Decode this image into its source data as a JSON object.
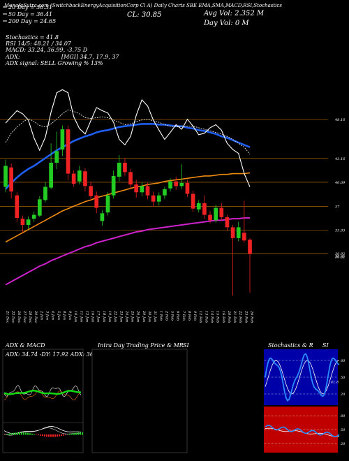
{
  "header": {
    "top_line": "MunafaSutra.com (SwitchbackEnergyAcquisitionCorp Cl A) Daily Charts SBE EMA,SMA,MACD,RSI,Stochastics",
    "close_label": "CL: 30.85",
    "avg_vol_label": "Avg Vol: 2.352 M",
    "day_vol_label": "Day Vol: 0 M",
    "legend": [
      {
        "label": "20 Day = 36.31",
        "color": "#ffffff"
      },
      {
        "label": "50 Day = 36.41",
        "color": "#ffffff"
      },
      {
        "label": "200 Day = 24.65",
        "color": "#ffffff"
      }
    ],
    "stoch_label": "Stochastics = 41.8",
    "rsi_label": "RSI 14/5: 48.21 / 34.07",
    "macd_label": "MACD: 33.24, 36.99, -3.75 D",
    "adx_label": "ADX:",
    "adx_values": "[MGI] 34.7, 17.9, 37",
    "adx_signal": "ADX signal: SELL Growing % 13%"
  },
  "chart_data": {
    "type": "candlestick",
    "price_ticks": [
      "48.16",
      "43.16",
      "40.09",
      "37",
      "33.93",
      "30.92",
      "30.52",
      "30.61"
    ],
    "x_labels": [
      "21 Dec",
      "22 Dec",
      "26 Dec",
      "27 Dec",
      "28 Dec",
      "29 Dec",
      "2 Jan",
      "3 Jan",
      "4 Jan",
      "5 Jan",
      "8 Jan",
      "9 Jan",
      "10 Jan",
      "11 Jan",
      "12 Jan",
      "16 Jan",
      "17 Jan",
      "18 Jan",
      "19 Jan",
      "22 Jan",
      "23 Jan",
      "24 Jan",
      "25 Jan",
      "26 Jan",
      "29 Jan",
      "30 Jan",
      "31 Jan",
      "1 Feb",
      "2 Feb",
      "5 Feb",
      "6 Feb",
      "7 Feb",
      "8 Feb",
      "9 Feb",
      "12 Feb",
      "13 Feb",
      "14 Feb",
      "15 Feb",
      "16 Feb",
      "20 Feb",
      "21 Feb",
      "22 Feb",
      "23 Feb",
      "26 Feb"
    ],
    "candles": [
      {
        "o": 39.5,
        "c": 42.2,
        "h": 43.0,
        "l": 38.8
      },
      {
        "o": 42.0,
        "c": 38.9,
        "h": 42.5,
        "l": 38.0
      },
      {
        "o": 38.4,
        "c": 35.5,
        "h": 38.8,
        "l": 35.0
      },
      {
        "o": 35.4,
        "c": 34.6,
        "h": 35.8,
        "l": 33.6
      },
      {
        "o": 34.6,
        "c": 35.3,
        "h": 35.7,
        "l": 34.1
      },
      {
        "o": 35.4,
        "c": 35.9,
        "h": 36.3,
        "l": 35.0
      },
      {
        "o": 35.8,
        "c": 37.9,
        "h": 38.3,
        "l": 35.6
      },
      {
        "o": 37.8,
        "c": 39.5,
        "h": 40.1,
        "l": 37.5
      },
      {
        "o": 39.4,
        "c": 42.6,
        "h": 45.1,
        "l": 39.2
      },
      {
        "o": 42.6,
        "c": 44.1,
        "h": 46.6,
        "l": 41.8
      },
      {
        "o": 44.3,
        "c": 46.9,
        "h": 47.4,
        "l": 43.5
      },
      {
        "o": 46.9,
        "c": 41.2,
        "h": 47.4,
        "l": 40.4
      },
      {
        "o": 41.2,
        "c": 39.9,
        "h": 41.6,
        "l": 39.5
      },
      {
        "o": 40.2,
        "c": 41.6,
        "h": 42.2,
        "l": 39.8
      },
      {
        "o": 41.5,
        "c": 39.6,
        "h": 41.9,
        "l": 38.9
      },
      {
        "o": 39.6,
        "c": 38.3,
        "h": 40.2,
        "l": 37.8
      },
      {
        "o": 38.4,
        "c": 36.8,
        "h": 38.9,
        "l": 36.1
      },
      {
        "o": 35.1,
        "c": 36.1,
        "h": 36.5,
        "l": 34.5
      },
      {
        "o": 36.2,
        "c": 38.4,
        "h": 38.8,
        "l": 35.8
      },
      {
        "o": 38.4,
        "c": 40.9,
        "h": 41.6,
        "l": 38.0
      },
      {
        "o": 40.8,
        "c": 42.6,
        "h": 43.6,
        "l": 40.2
      },
      {
        "o": 42.6,
        "c": 41.4,
        "h": 43.2,
        "l": 40.9
      },
      {
        "o": 41.4,
        "c": 39.8,
        "h": 41.8,
        "l": 39.3
      },
      {
        "o": 39.8,
        "c": 38.8,
        "h": 40.4,
        "l": 38.1
      },
      {
        "o": 38.8,
        "c": 39.6,
        "h": 40.1,
        "l": 38.3
      },
      {
        "o": 39.6,
        "c": 38.4,
        "h": 40.0,
        "l": 37.9
      },
      {
        "o": 38.4,
        "c": 37.6,
        "h": 38.9,
        "l": 37.0
      },
      {
        "o": 37.6,
        "c": 38.4,
        "h": 38.8,
        "l": 37.1
      },
      {
        "o": 38.4,
        "c": 39.2,
        "h": 39.5,
        "l": 37.9
      },
      {
        "o": 39.3,
        "c": 40.2,
        "h": 40.6,
        "l": 38.9
      },
      {
        "o": 40.2,
        "c": 39.6,
        "h": 40.8,
        "l": 39.1
      },
      {
        "o": 39.6,
        "c": 40.0,
        "h": 42.4,
        "l": 39.2
      },
      {
        "o": 40.0,
        "c": 38.6,
        "h": 40.4,
        "l": 38.2
      },
      {
        "o": 38.6,
        "c": 36.7,
        "h": 39.0,
        "l": 36.3
      },
      {
        "o": 36.6,
        "c": 37.4,
        "h": 37.8,
        "l": 36.2
      },
      {
        "o": 37.4,
        "c": 35.9,
        "h": 38.4,
        "l": 35.4
      },
      {
        "o": 35.9,
        "c": 35.2,
        "h": 36.4,
        "l": 34.8
      },
      {
        "o": 35.2,
        "c": 36.8,
        "h": 37.2,
        "l": 34.9
      },
      {
        "o": 36.8,
        "c": 35.6,
        "h": 37.4,
        "l": 35.1
      },
      {
        "o": 35.6,
        "c": 34.3,
        "h": 35.9,
        "l": 33.8
      },
      {
        "o": 34.3,
        "c": 32.9,
        "h": 34.6,
        "l": 25.5
      },
      {
        "o": 32.9,
        "c": 34.3,
        "h": 35.0,
        "l": 32.5
      },
      {
        "o": 33.6,
        "c": 32.6,
        "h": 37.7,
        "l": 32.3
      },
      {
        "o": 32.7,
        "c": 30.85,
        "h": 32.9,
        "l": 25.9
      }
    ],
    "ema20": [
      47,
      46.3,
      45.6,
      45,
      44.3,
      43.8,
      43.9,
      44.7,
      45.6,
      46.2,
      47.2,
      46.9,
      46.5,
      46.7,
      46.4,
      46.2,
      45.9,
      45.6,
      45.4,
      45.6,
      46.2,
      46.9,
      47.1,
      47.2,
      47.3,
      47.3,
      47.1,
      47.3,
      47.3,
      47.5,
      47.4,
      47.5,
      47.3,
      47.1,
      47.1,
      46.8,
      46.5,
      46.3,
      45.7,
      45.1,
      44.6,
      43.8,
      43.2,
      42.1
    ],
    "ema50": [
      39.2,
      40,
      40.7,
      41.3,
      41.8,
      42.2,
      42.7,
      43.2,
      43.7,
      44.2,
      44.6,
      45,
      45.4,
      45.7,
      46,
      46.2,
      46.5,
      46.7,
      46.8,
      47,
      47.2,
      47.3,
      47.4,
      47.5,
      47.6,
      47.6,
      47.6,
      47.5,
      47.5,
      47.4,
      47.3,
      47.3,
      47.1,
      47,
      46.8,
      46.7,
      46.5,
      46.3,
      46,
      45.8,
      45.5,
      45.2,
      44.9,
      44.6
    ],
    "ema100": [
      32.4,
      32.8,
      33.2,
      33.6,
      34,
      34.4,
      34.8,
      35.2,
      35.6,
      36,
      36.4,
      36.7,
      37,
      37.3,
      37.6,
      37.8,
      38.1,
      38.3,
      38.5,
      38.7,
      38.9,
      39.1,
      39.3,
      39.5,
      39.6,
      39.8,
      39.9,
      40,
      40.2,
      40.3,
      40.4,
      40.5,
      40.6,
      40.7,
      40.8,
      40.9,
      40.9,
      41,
      41.1,
      41.1,
      41.2,
      41.2,
      41.2,
      41.3
    ],
    "ema200": [
      26.9,
      27.3,
      27.7,
      28.1,
      28.5,
      28.9,
      29.3,
      29.6,
      30,
      30.3,
      30.6,
      30.9,
      31.2,
      31.5,
      31.8,
      32,
      32.3,
      32.5,
      32.7,
      32.9,
      33.1,
      33.3,
      33.5,
      33.7,
      33.8,
      34,
      34.1,
      34.2,
      34.3,
      34.4,
      34.5,
      34.6,
      34.7,
      34.8,
      34.9,
      35,
      35.1,
      35.2,
      35.2,
      35.3,
      35.4,
      35.4,
      35.5,
      35.5
    ],
    "sma_white": [
      47.7,
      48.5,
      49.3,
      48.9,
      48.1,
      45.8,
      44.2,
      45.9,
      49.1,
      51.6,
      52,
      51.6,
      48.5,
      47,
      46.3,
      48,
      49.7,
      49.3,
      49,
      47.8,
      45.6,
      44.9,
      46,
      48.7,
      50.7,
      49.9,
      48.1,
      46.8,
      45.6,
      46.5,
      47.5,
      46.9,
      48.2,
      47.3,
      46.2,
      46.4,
      47.1,
      47.5,
      46.8,
      45.1,
      44.3,
      43.8,
      41.2,
      39.5
    ],
    "sma_dotted": [
      45.2,
      46.4,
      47.2,
      47.8,
      48.3,
      47.9,
      47.4,
      47.2,
      47.6,
      48.2,
      48.9,
      49.4,
      49.2,
      48.9,
      48.4,
      48.3,
      48.4,
      48.5,
      48.4,
      48.1,
      47.8,
      47.5,
      47.6,
      47.9,
      48.1,
      48.2,
      48,
      47.8,
      47.5,
      47.3,
      47.2,
      47.3,
      47.3,
      47.3,
      47.1,
      46.9,
      46.7,
      46.5,
      46.3,
      46,
      45.6,
      45.1,
      44.6,
      43.7
    ],
    "ymin": 24.0,
    "ymax": 55.0,
    "panels": [
      {
        "name": "ADX & MACD",
        "sub": "ADX: 34.74  -DY: 17.92  ADX: 36.99"
      },
      {
        "name": "Intra Day Trading Price & MR",
        "right": "SI"
      },
      {
        "name": "Stochastics & R",
        "right": "SI",
        "ticks": [
          "80",
          "50",
          "20"
        ],
        "rsi_ticks": [
          "80",
          "50",
          "20"
        ],
        "stoch_label": "41.8"
      }
    ]
  }
}
